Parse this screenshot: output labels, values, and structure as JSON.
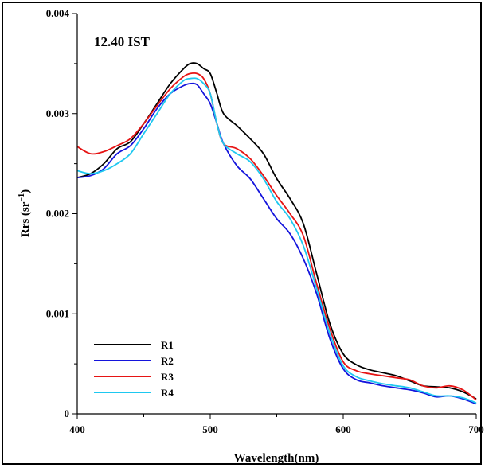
{
  "chart_data": {
    "type": "line",
    "annotation": "12.40 IST",
    "xlabel": "Wavelength(nm)",
    "ylabel_main": "Rrs (sr",
    "ylabel_sup": "−1",
    "ylabel_close": ")",
    "xlim": [
      400,
      700
    ],
    "ylim": [
      0,
      0.004
    ],
    "xticks": [
      400,
      500,
      600,
      700
    ],
    "xtick_labels": [
      "400",
      "500",
      "600",
      "700"
    ],
    "yticks": [
      0,
      0.001,
      0.002,
      0.003,
      0.004
    ],
    "ytick_labels": [
      "0",
      "0.001",
      "0.002",
      "0.003",
      "0.004"
    ],
    "legend_position": "lower-left",
    "series": [
      {
        "name": "R1",
        "color": "#000000",
        "x": [
          400,
          410,
          420,
          430,
          440,
          450,
          460,
          470,
          480,
          485,
          490,
          495,
          500,
          505,
          510,
          520,
          530,
          540,
          550,
          560,
          570,
          580,
          590,
          600,
          610,
          620,
          630,
          640,
          650,
          660,
          670,
          680,
          690,
          700
        ],
        "y": [
          0.00236,
          0.0024,
          0.0025,
          0.00265,
          0.00272,
          0.0029,
          0.0031,
          0.0033,
          0.00345,
          0.0035,
          0.0035,
          0.00345,
          0.0034,
          0.0032,
          0.003,
          0.00288,
          0.00275,
          0.0026,
          0.00235,
          0.00215,
          0.0019,
          0.0014,
          0.0009,
          0.0006,
          0.00049,
          0.00044,
          0.00041,
          0.00038,
          0.00033,
          0.00028,
          0.00027,
          0.00026,
          0.00022,
          0.00015
        ]
      },
      {
        "name": "R2",
        "color": "#1414dc",
        "x": [
          400,
          410,
          420,
          430,
          440,
          450,
          460,
          470,
          480,
          485,
          490,
          495,
          500,
          505,
          510,
          520,
          530,
          540,
          550,
          560,
          570,
          580,
          590,
          600,
          610,
          620,
          630,
          640,
          650,
          660,
          670,
          680,
          690,
          700
        ],
        "y": [
          0.00236,
          0.00238,
          0.00245,
          0.0026,
          0.00268,
          0.00285,
          0.00305,
          0.0032,
          0.00328,
          0.0033,
          0.00329,
          0.0032,
          0.0031,
          0.0029,
          0.0027,
          0.00248,
          0.00235,
          0.00215,
          0.00195,
          0.0018,
          0.00155,
          0.0012,
          0.00075,
          0.00045,
          0.00034,
          0.00031,
          0.00028,
          0.00026,
          0.00024,
          0.00021,
          0.00017,
          0.00018,
          0.00015,
          0.0001
        ]
      },
      {
        "name": "R3",
        "color": "#e61414",
        "x": [
          400,
          410,
          420,
          430,
          440,
          450,
          460,
          470,
          480,
          485,
          490,
          495,
          500,
          505,
          510,
          520,
          530,
          540,
          550,
          560,
          570,
          580,
          590,
          600,
          610,
          620,
          630,
          640,
          650,
          660,
          670,
          680,
          690,
          700
        ],
        "y": [
          0.00267,
          0.0026,
          0.00262,
          0.00268,
          0.00275,
          0.0029,
          0.00308,
          0.00325,
          0.00337,
          0.0034,
          0.0034,
          0.00335,
          0.0032,
          0.0029,
          0.0027,
          0.00265,
          0.00255,
          0.00238,
          0.00218,
          0.002,
          0.00178,
          0.0013,
          0.00085,
          0.00052,
          0.00043,
          0.0004,
          0.00038,
          0.00036,
          0.00034,
          0.00028,
          0.00026,
          0.00028,
          0.00024,
          0.00014
        ]
      },
      {
        "name": "R4",
        "color": "#1ec8f0",
        "x": [
          400,
          410,
          420,
          430,
          440,
          450,
          460,
          470,
          480,
          485,
          490,
          495,
          500,
          505,
          510,
          520,
          530,
          540,
          550,
          560,
          570,
          580,
          590,
          600,
          610,
          620,
          630,
          640,
          650,
          660,
          670,
          680,
          690,
          700
        ],
        "y": [
          0.00243,
          0.0024,
          0.00243,
          0.0025,
          0.0026,
          0.0028,
          0.003,
          0.0032,
          0.00333,
          0.00335,
          0.00335,
          0.0033,
          0.0032,
          0.0029,
          0.0027,
          0.0026,
          0.00252,
          0.00235,
          0.00212,
          0.00195,
          0.00168,
          0.00125,
          0.0008,
          0.00048,
          0.00037,
          0.00033,
          0.0003,
          0.00028,
          0.00026,
          0.00022,
          0.00018,
          0.00018,
          0.00016,
          0.00011
        ]
      }
    ]
  }
}
